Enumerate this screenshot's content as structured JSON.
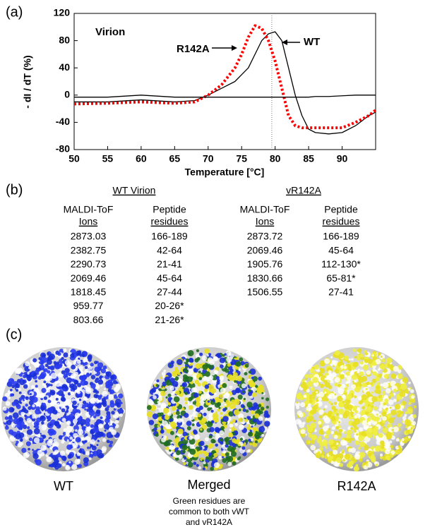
{
  "chart_data": {
    "type": "line",
    "panel_label": "(a)",
    "annotation": "Virion",
    "ylabel": "- dI / dT (%)",
    "xlabel": "Temperature [°C]",
    "xlim": [
      50,
      95
    ],
    "xticks": [
      50,
      55,
      60,
      65,
      70,
      75,
      80,
      85,
      90
    ],
    "ylim": [
      -80,
      120
    ],
    "yticks": [
      120,
      80,
      40,
      0,
      -40,
      -80
    ],
    "vline": 79.5,
    "x": [
      50,
      55,
      60,
      65,
      68,
      70,
      72,
      74,
      75,
      76,
      77,
      78,
      79,
      80,
      81,
      82,
      83,
      84,
      85,
      86,
      88,
      90,
      92,
      94,
      95
    ],
    "series": [
      {
        "name": "WT",
        "color": "#000000",
        "dash": "solid",
        "values": [
          -10,
          -10,
          -7,
          -10,
          -8,
          0,
          10,
          20,
          30,
          40,
          60,
          80,
          90,
          93,
          80,
          40,
          0,
          -30,
          -50,
          -55,
          -57,
          -55,
          -45,
          -30,
          -25
        ]
      },
      {
        "name": "R142A",
        "color": "#ff0000",
        "dash": "dotted",
        "values": [
          -13,
          -12,
          -10,
          -12,
          -10,
          0,
          15,
          40,
          60,
          85,
          102,
          98,
          80,
          50,
          10,
          -30,
          -45,
          -48,
          -48,
          -48,
          -48,
          -48,
          -40,
          -30,
          -22
        ]
      },
      {
        "color": "#000000",
        "dash": "solid",
        "values": [
          -3,
          -3,
          0,
          -3,
          -3,
          -3,
          -3,
          -3,
          -3,
          -3,
          -3,
          -3,
          -3,
          -3,
          -3,
          -3,
          -3,
          -3,
          -3,
          -2,
          -2,
          -1,
          0,
          0,
          0
        ]
      }
    ]
  },
  "panel_b": {
    "label": "(b)",
    "tables": [
      {
        "title": "WT Virion",
        "headers": [
          [
            "MALDI-ToF",
            "Ions"
          ],
          [
            "Peptide",
            "residues"
          ]
        ],
        "rows": [
          [
            "2873.03",
            "166-189"
          ],
          [
            "2382.75",
            "42-64"
          ],
          [
            "2290.73",
            "21-41"
          ],
          [
            "2069.46",
            "45-64"
          ],
          [
            "1818.45",
            "27-44"
          ],
          [
            "959.77",
            "20-26*"
          ],
          [
            "803.66",
            "21-26*"
          ]
        ]
      },
      {
        "title": "vR142A",
        "headers": [
          [
            "MALDI-ToF",
            "Ions"
          ],
          [
            "Peptide",
            "residues"
          ]
        ],
        "rows": [
          [
            "2873.72",
            "166-189"
          ],
          [
            "2069.46",
            "45-64"
          ],
          [
            "1905.76",
            "112-130*"
          ],
          [
            "1830.66",
            "65-81*"
          ],
          [
            "1506.55",
            "27-41"
          ]
        ]
      }
    ]
  },
  "panel_c": {
    "label": "(c)",
    "images": [
      {
        "caption": "WT"
      },
      {
        "caption": "Merged",
        "note": [
          "Green residues are",
          "common to both vWT",
          "and vR142A"
        ]
      },
      {
        "caption": "R142A"
      }
    ]
  }
}
